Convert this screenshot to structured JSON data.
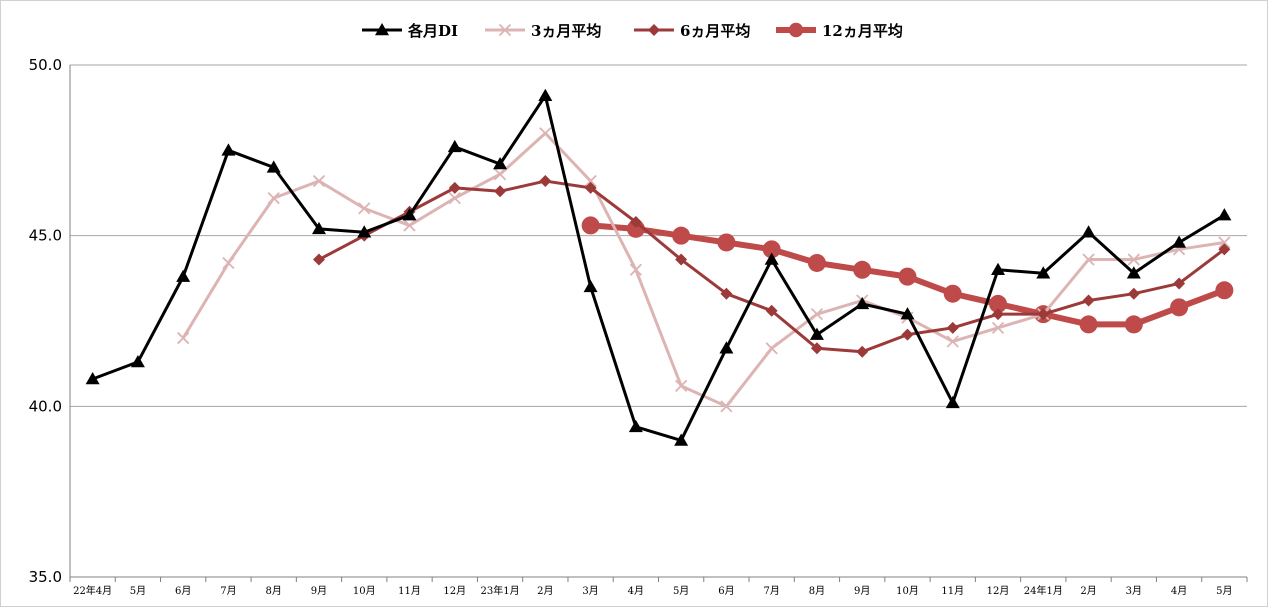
{
  "chart_data": {
    "type": "line",
    "title": "",
    "xlabel": "",
    "ylabel": "",
    "ylim": [
      35.0,
      50.0
    ],
    "yticks": [
      "50.0",
      "45.0",
      "40.0",
      "35.0"
    ],
    "grid": true,
    "legend_position": "top-center",
    "categories": [
      "22年4月",
      "5月",
      "6月",
      "7月",
      "8月",
      "9月",
      "10月",
      "11月",
      "12月",
      "23年1月",
      "2月",
      "3月",
      "4月",
      "5月",
      "6月",
      "7月",
      "8月",
      "9月",
      "10月",
      "11月",
      "12月",
      "24年1月",
      "2月",
      "3月",
      "4月",
      "5月"
    ],
    "series": [
      {
        "name": "各月DI",
        "color": "#000000",
        "marker": "triangle",
        "values": [
          40.8,
          41.3,
          43.8,
          47.5,
          47.0,
          45.2,
          45.1,
          45.6,
          47.6,
          47.1,
          49.1,
          43.5,
          39.4,
          39.0,
          41.7,
          44.3,
          42.1,
          43.0,
          42.7,
          40.1,
          44.0,
          43.9,
          45.1,
          43.9,
          44.8,
          45.6
        ]
      },
      {
        "name": "3ヵ月平均",
        "color": "#ddb4b4",
        "marker": "x",
        "values": [
          null,
          null,
          42.0,
          44.2,
          46.1,
          46.6,
          45.8,
          45.3,
          46.1,
          46.8,
          48.0,
          46.6,
          44.0,
          40.6,
          40.0,
          41.7,
          42.7,
          43.1,
          42.6,
          41.9,
          42.3,
          42.7,
          44.3,
          44.3,
          44.6,
          44.8
        ]
      },
      {
        "name": "6ヵ月平均",
        "color": "#9c3a3a",
        "marker": "diamond",
        "values": [
          null,
          null,
          null,
          null,
          null,
          44.3,
          45.0,
          45.7,
          46.4,
          46.3,
          46.6,
          46.4,
          45.4,
          44.3,
          43.3,
          42.8,
          41.7,
          41.6,
          42.1,
          42.3,
          42.7,
          42.7,
          43.1,
          43.3,
          43.6,
          44.6
        ]
      },
      {
        "name": "12ヵ月平均",
        "color": "#bf4a4a",
        "marker": "circle",
        "values": [
          null,
          null,
          null,
          null,
          null,
          null,
          null,
          null,
          null,
          null,
          null,
          45.3,
          45.2,
          45.0,
          44.8,
          44.6,
          44.2,
          44.0,
          43.8,
          43.3,
          43.0,
          42.7,
          42.4,
          42.4,
          42.9,
          43.4
        ]
      }
    ]
  }
}
